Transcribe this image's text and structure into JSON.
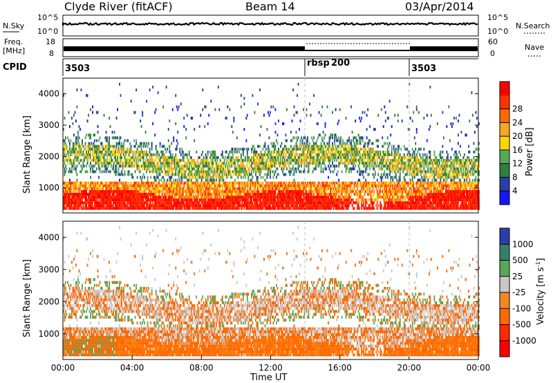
{
  "header": {
    "site": "Clyde River (fitACF)",
    "beam": "Beam 14",
    "date": "03/Apr/2014"
  },
  "strip_labels": {
    "nsky": "N.Sky",
    "nsearch": "N.Search",
    "freq_line1": "Freq.",
    "freq_line2": "[MHz]",
    "nave": "Nave",
    "cpid": "CPID"
  },
  "noise_panel": {
    "left_ticks": [
      "10^5",
      "10^0"
    ],
    "right_ticks": [
      "10^5",
      "10^0"
    ]
  },
  "freq_panel": {
    "left_ticks": [
      "18",
      "8"
    ],
    "right_ticks": [
      "60",
      "0"
    ]
  },
  "cpid_segments": [
    {
      "label": "3503",
      "start_hour": 0
    },
    {
      "label": "rbsp",
      "value": "200",
      "start_hour": 14
    },
    {
      "label": "3503",
      "start_hour": 20
    }
  ],
  "chart_data": [
    {
      "type": "heatmap",
      "name": "power",
      "ylabel": "Slant Range [km]",
      "xlim_hours": [
        0,
        24
      ],
      "ylim": [
        200,
        4500
      ],
      "y_ticks": [
        1000,
        2000,
        3000,
        4000
      ],
      "colorbar": {
        "label": "Power [dB]",
        "ticks": [
          "4",
          "8",
          "12",
          "16",
          "20",
          "24",
          "28"
        ],
        "colors": [
          "#1515ff",
          "#2b3fa8",
          "#2f8040",
          "#58a85a",
          "#ffd700",
          "#f5a623",
          "#ff6a00",
          "#ff3300",
          "#ff0000"
        ]
      }
    },
    {
      "type": "heatmap",
      "name": "velocity",
      "ylabel": "Slant Range [km]",
      "xlabel": "Time UT",
      "xlim_hours": [
        0,
        24
      ],
      "ylim": [
        200,
        4500
      ],
      "y_ticks": [
        1000,
        2000,
        3000,
        4000
      ],
      "x_tick_labels": [
        "00:00",
        "04:00",
        "08:00",
        "12:00",
        "16:00",
        "20:00",
        "00:00"
      ],
      "colorbar": {
        "label_main": "Velocity  [m s",
        "label_sup": "-1",
        "label_end": "]",
        "ticks": [
          "1000",
          "500",
          "25",
          "-25",
          "-100",
          "-500",
          "-1000"
        ],
        "colors": [
          "#2a3fa8",
          "#3a7d6a",
          "#58a85a",
          "#c8c8c8",
          "#f08a1e",
          "#ff6a00",
          "#ff2a00",
          "#ff0000"
        ]
      }
    }
  ]
}
